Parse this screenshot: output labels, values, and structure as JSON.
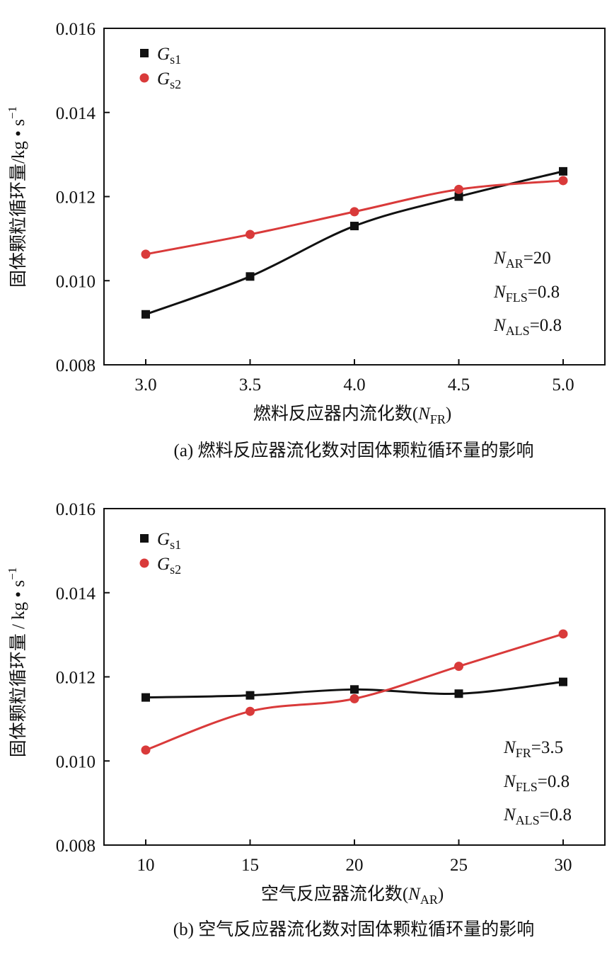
{
  "charts": [
    {
      "id": "a",
      "caption": "(a) 燃料反应器流化数对固体颗粒循环量的影响",
      "xlabel_prefix": "燃料反应器内流化数(",
      "xlabel_var": "N",
      "xlabel_sub": "FR",
      "xlabel_suffix": ")",
      "ylabel_main": "固体颗粒循环量/kg • s",
      "ylabel_sup": "−1",
      "x_ticks": [
        "3.0",
        "3.5",
        "4.0",
        "4.5",
        "5.0"
      ],
      "y_ticks": [
        "0.008",
        "0.010",
        "0.012",
        "0.014",
        "0.016"
      ],
      "legend": [
        {
          "var": "G",
          "sub": "s1",
          "color": "#111111",
          "marker": "square"
        },
        {
          "var": "G",
          "sub": "s2",
          "color": "#d93a3a",
          "marker": "circle"
        }
      ],
      "annotations": [
        {
          "var": "N",
          "sub": "AR",
          "rest": "=20"
        },
        {
          "var": "N",
          "sub": "FLS",
          "rest": "=0.8"
        },
        {
          "var": "N",
          "sub": "ALS",
          "rest": "=0.8"
        }
      ]
    },
    {
      "id": "b",
      "caption": "(b) 空气反应器流化数对固体颗粒循环量的影响",
      "xlabel_prefix": "空气反应器流化数(",
      "xlabel_var": "N",
      "xlabel_sub": "AR",
      "xlabel_suffix": ")",
      "ylabel_main": "固体颗粒循环量 / kg • s",
      "ylabel_sup": "−1",
      "x_ticks": [
        "10",
        "15",
        "20",
        "25",
        "30"
      ],
      "y_ticks": [
        "0.008",
        "0.010",
        "0.012",
        "0.014",
        "0.016"
      ],
      "legend": [
        {
          "var": "G",
          "sub": "s1",
          "color": "#111111",
          "marker": "square"
        },
        {
          "var": "G",
          "sub": "s2",
          "color": "#d93a3a",
          "marker": "circle"
        }
      ],
      "annotations": [
        {
          "var": "N",
          "sub": "FR",
          "rest": "=3.5"
        },
        {
          "var": "N",
          "sub": "FLS",
          "rest": "=0.8"
        },
        {
          "var": "N",
          "sub": "ALS",
          "rest": "=0.8"
        }
      ]
    }
  ],
  "chart_data": [
    {
      "type": "line",
      "x": [
        3.0,
        3.5,
        4.0,
        4.5,
        5.0
      ],
      "xlim": [
        2.8,
        5.2
      ],
      "ylim": [
        0.008,
        0.016
      ],
      "grid": false,
      "legend_position": "top-left",
      "series": [
        {
          "name": "Gs1",
          "color": "#111111",
          "marker": "square",
          "values": [
            0.0092,
            0.0101,
            0.0113,
            0.012,
            0.0126
          ]
        },
        {
          "name": "Gs2",
          "color": "#d93a3a",
          "marker": "circle",
          "values": [
            0.01063,
            0.0111,
            0.01164,
            0.01217,
            0.01238
          ]
        }
      ]
    },
    {
      "type": "line",
      "x": [
        10,
        15,
        20,
        25,
        30
      ],
      "xlim": [
        8,
        32
      ],
      "ylim": [
        0.008,
        0.016
      ],
      "grid": false,
      "legend_position": "top-left",
      "series": [
        {
          "name": "Gs1",
          "color": "#111111",
          "marker": "square",
          "values": [
            0.01151,
            0.01156,
            0.0117,
            0.0116,
            0.01188
          ]
        },
        {
          "name": "Gs2",
          "color": "#d93a3a",
          "marker": "circle",
          "values": [
            0.01026,
            0.01118,
            0.01148,
            0.01225,
            0.01302
          ]
        }
      ]
    }
  ]
}
